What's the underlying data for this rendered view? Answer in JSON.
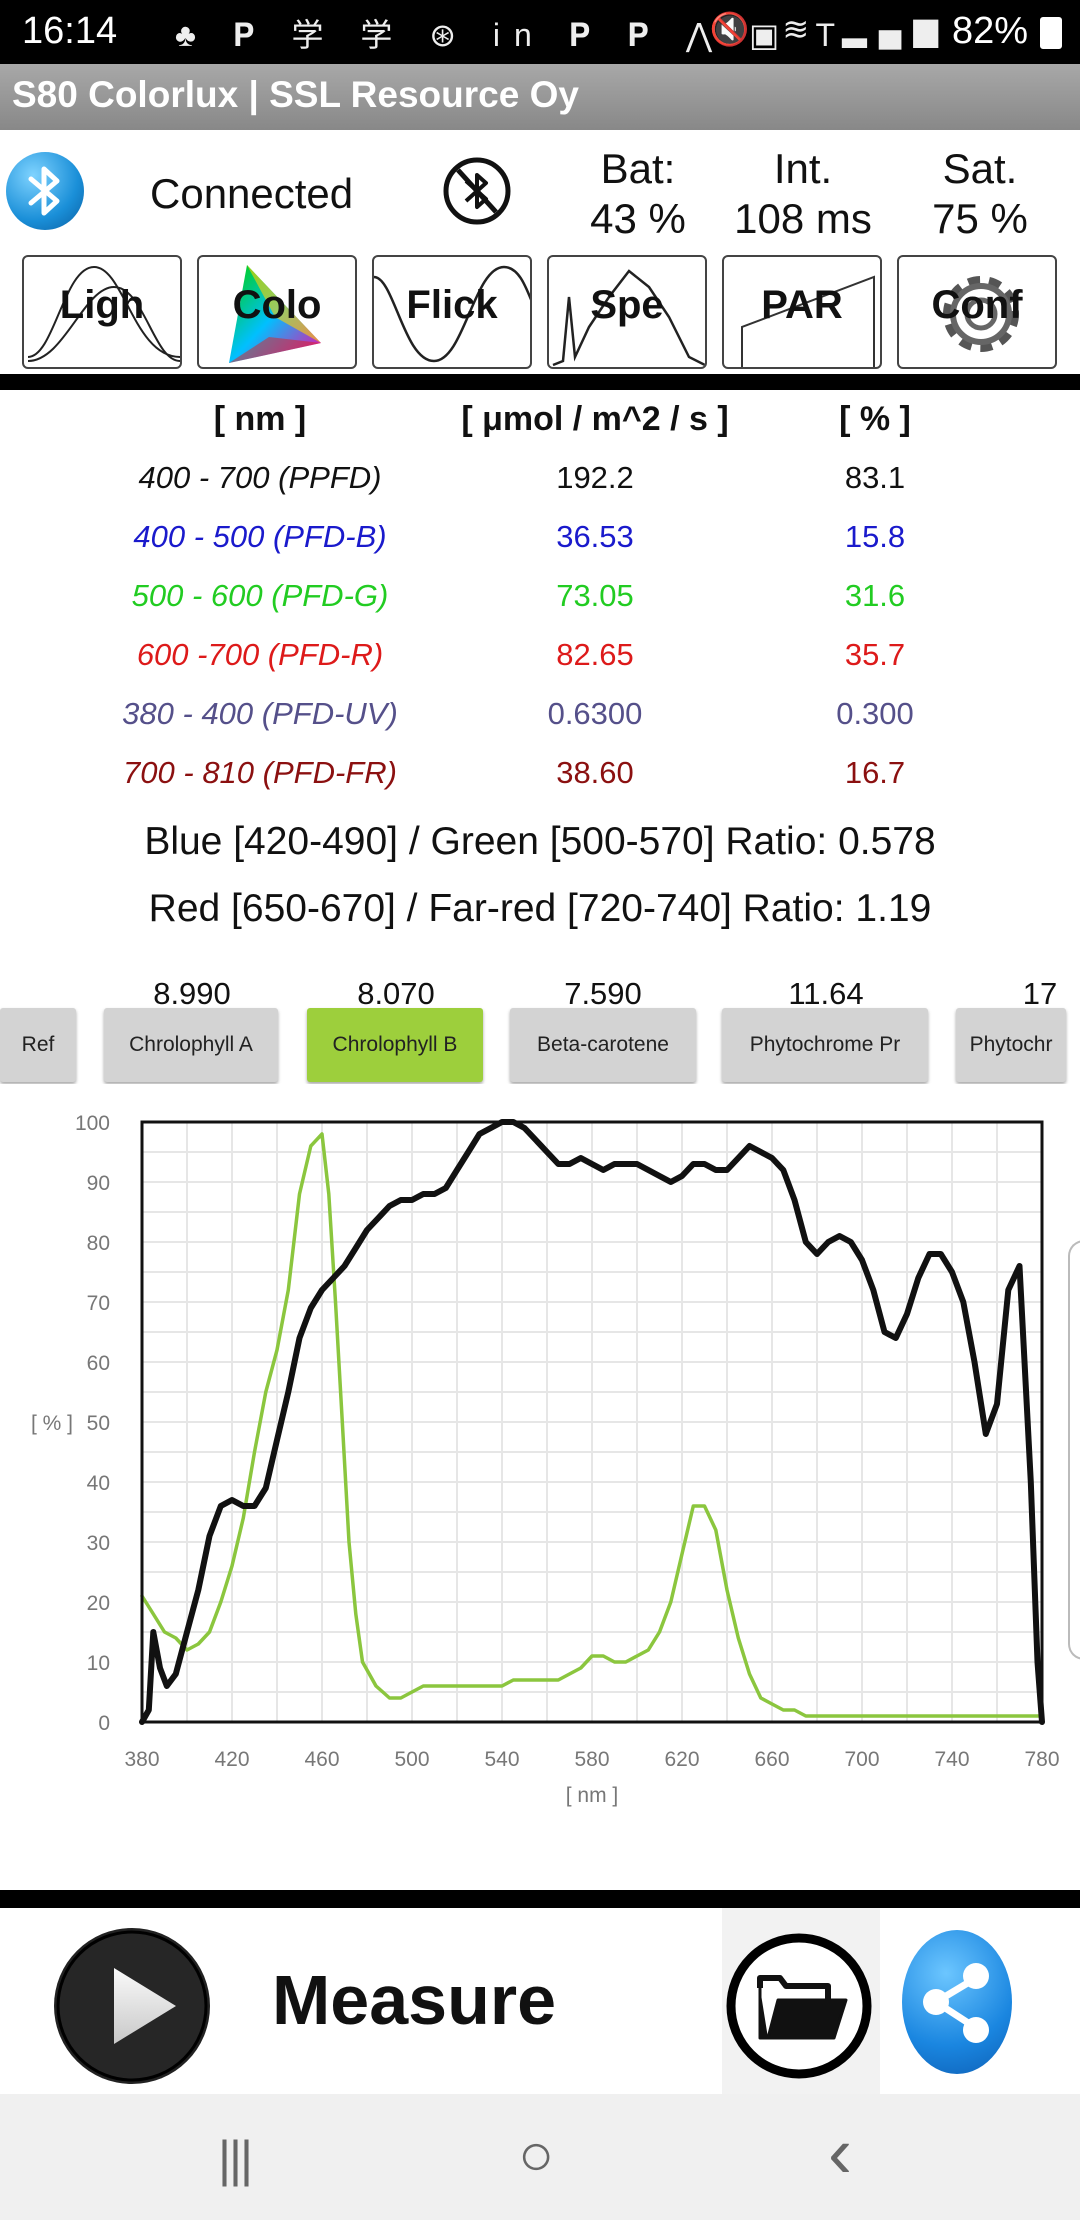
{
  "status": {
    "time": "16:14",
    "left_icons": "♣ 𝐏 学 学 ⊛ in 𝐏 𝐏 ⋀ ▣ T",
    "right_icons": "🔇 ≋ ▂▄▆",
    "battery": "82%"
  },
  "app": {
    "title": "S80 Colorlux  |  SSL Resource Oy"
  },
  "info": {
    "connection": "Connected",
    "bat_label": "Bat:",
    "bat_value": "43 %",
    "int_label": "Int.",
    "int_value": "108 ms",
    "sat_label": "Sat.",
    "sat_value": "75 %"
  },
  "tools": [
    {
      "label": "Ligh"
    },
    {
      "label": "Colo"
    },
    {
      "label": "Flick"
    },
    {
      "label": "Spe"
    },
    {
      "label": "PAR"
    },
    {
      "label": "Conf"
    }
  ],
  "table": {
    "headers": [
      "[ nm ]",
      "[ μmol / m^2 / s ]",
      "[ % ]"
    ],
    "rows": [
      {
        "range": "400 - 700 (PPFD)",
        "value": "192.2",
        "pct": "83.1",
        "color": "#111111"
      },
      {
        "range": "400 - 500 (PFD-B)",
        "value": "36.53",
        "pct": "15.8",
        "color": "#1a1acc"
      },
      {
        "range": "500 - 600 (PFD-G)",
        "value": "73.05",
        "pct": "31.6",
        "color": "#22cc22"
      },
      {
        "range": "600 -700 (PFD-R)",
        "value": "82.65",
        "pct": "35.7",
        "color": "#dd1a1a"
      },
      {
        "range": "380 - 400 (PFD-UV)",
        "value": "0.6300",
        "pct": "0.300",
        "color": "#55508a"
      },
      {
        "range": "700 - 810 (PFD-FR)",
        "value": "38.60",
        "pct": "16.7",
        "color": "#8b1010"
      }
    ],
    "ratio_bg": "Blue [420-490] / Green [500-570] Ratio: 0.578",
    "ratio_rfr": "Red [650-670] / Far-red [720-740] Ratio: 1.19"
  },
  "pigments": {
    "numbers": [
      "8.990",
      "8.070",
      "7.590",
      "11.64",
      "17"
    ],
    "buttons": [
      "Ref",
      "Chrolophyll A",
      "Chrolophyll B",
      "Beta-carotene",
      "Phytochrome Pr",
      "Phytochr"
    ],
    "active": "Chrolophyll B"
  },
  "chart_data": {
    "type": "line",
    "xlabel": "[ nm ]",
    "ylabel": "[ % ]",
    "xlim": [
      380,
      780
    ],
    "ylim": [
      0,
      100
    ],
    "xticks": [
      380,
      420,
      460,
      500,
      540,
      580,
      620,
      660,
      700,
      740,
      780
    ],
    "yticks": [
      0,
      10,
      20,
      30,
      40,
      50,
      60,
      70,
      80,
      90,
      100
    ],
    "grid": true,
    "series": [
      {
        "color": "#111111",
        "x": [
          380,
          383,
          385,
          388,
          391,
          395,
          400,
          405,
          410,
          415,
          420,
          425,
          430,
          435,
          440,
          445,
          450,
          455,
          460,
          465,
          470,
          475,
          480,
          485,
          490,
          495,
          500,
          505,
          510,
          515,
          520,
          525,
          530,
          535,
          540,
          545,
          550,
          555,
          560,
          565,
          570,
          575,
          580,
          585,
          590,
          595,
          600,
          605,
          610,
          615,
          620,
          625,
          630,
          635,
          640,
          645,
          650,
          655,
          660,
          665,
          670,
          675,
          680,
          685,
          690,
          695,
          700,
          705,
          710,
          715,
          720,
          725,
          730,
          735,
          740,
          745,
          750,
          755,
          760,
          765,
          770,
          775,
          778,
          780
        ],
        "y": [
          0,
          2,
          15,
          9,
          6,
          8,
          15,
          22,
          31,
          36,
          37,
          36,
          36,
          39,
          47,
          55,
          64,
          69,
          72,
          74,
          76,
          79,
          82,
          84,
          86,
          87,
          87,
          88,
          88,
          89,
          92,
          95,
          98,
          99,
          100,
          100,
          99,
          97,
          95,
          93,
          93,
          94,
          93,
          92,
          93,
          93,
          93,
          92,
          91,
          90,
          91,
          93,
          93,
          92,
          92,
          94,
          96,
          95,
          94,
          92,
          87,
          80,
          78,
          80,
          81,
          80,
          77,
          72,
          65,
          64,
          68,
          74,
          78,
          78,
          75,
          70,
          60,
          48,
          53,
          72,
          76,
          40,
          10,
          0
        ]
      },
      {
        "color": "#8bc63e",
        "x": [
          380,
          385,
          390,
          395,
          400,
          405,
          410,
          415,
          420,
          425,
          430,
          435,
          440,
          445,
          450,
          455,
          460,
          463,
          466,
          469,
          472,
          475,
          478,
          481,
          484,
          487,
          490,
          495,
          500,
          505,
          510,
          515,
          520,
          525,
          530,
          535,
          540,
          545,
          550,
          555,
          560,
          565,
          570,
          575,
          580,
          585,
          590,
          595,
          600,
          605,
          610,
          615,
          620,
          625,
          630,
          635,
          640,
          645,
          650,
          655,
          660,
          665,
          670,
          675,
          680,
          690,
          700,
          710,
          720,
          740,
          760,
          780
        ],
        "y": [
          21,
          18,
          15,
          14,
          12,
          13,
          15,
          20,
          26,
          34,
          45,
          55,
          62,
          72,
          88,
          96,
          98,
          88,
          70,
          50,
          30,
          18,
          10,
          8,
          6,
          5,
          4,
          4,
          5,
          6,
          6,
          6,
          6,
          6,
          6,
          6,
          6,
          7,
          7,
          7,
          7,
          7,
          8,
          9,
          11,
          11,
          10,
          10,
          11,
          12,
          15,
          20,
          28,
          36,
          36,
          32,
          22,
          14,
          8,
          4,
          3,
          2,
          2,
          1,
          1,
          1,
          1,
          1,
          1,
          1,
          1,
          1
        ]
      }
    ]
  },
  "actions": {
    "measure": "Measure"
  },
  "nav": {
    "recent": "|||",
    "home": "○",
    "back": "‹"
  }
}
